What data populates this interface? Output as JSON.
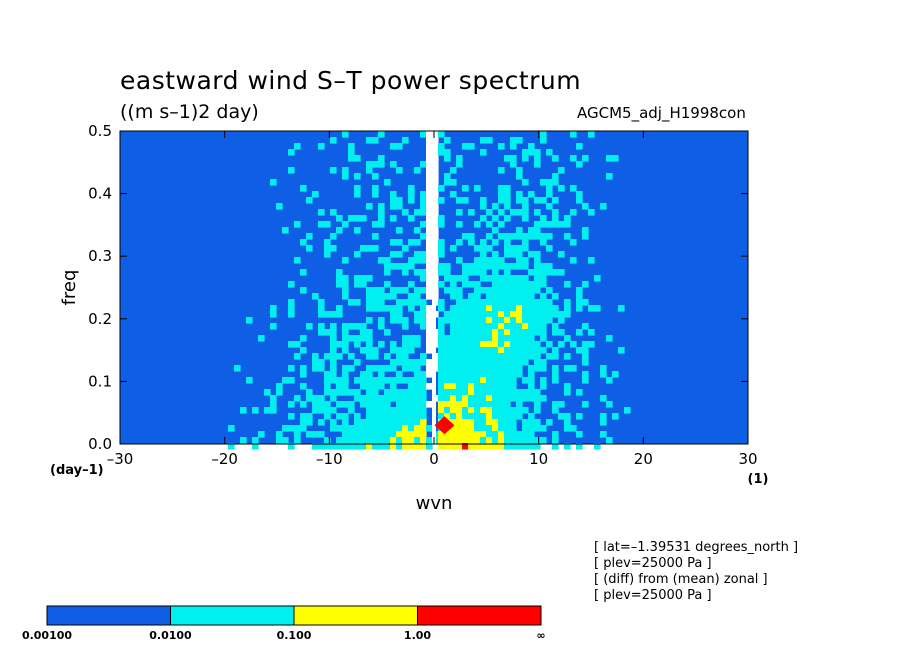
{
  "header": {
    "title": "eastward wind S–T power spectrum",
    "subtitle": "((m s–1)2 day)",
    "run_label": "AGCM5_adj_H1998con"
  },
  "info_lines": [
    "[ lat=–1.39531 degrees_north ]",
    "[ plev=25000 Pa ]",
    "[ (diff) from (mean) zonal ]",
    "[ plev=25000 Pa ]"
  ],
  "colors": {
    "level0": "#ffffff",
    "level1": "#0f5fe6",
    "level2": "#00f0f0",
    "level3": "#ffff00",
    "level4": "#ff0000"
  },
  "chart_data": {
    "type": "heatmap",
    "title": "eastward wind S–T power spectrum",
    "subtitle": "((m s–1)2 day)",
    "xlabel": "wvn",
    "xunit": "(1)",
    "ylabel": "freq",
    "yunit": "(day–1)",
    "xlim": [
      -30,
      30
    ],
    "ylim": [
      0,
      0.5
    ],
    "x_ticks": [
      -30,
      -20,
      -10,
      0,
      10,
      20,
      30
    ],
    "x_tick_labels": [
      "–30",
      "–20",
      "–10",
      "0",
      "10",
      "20",
      "30"
    ],
    "y_ticks": [
      0,
      0.1,
      0.2,
      0.3,
      0.4,
      0.5
    ],
    "y_tick_labels": [
      "0.0",
      "0.1",
      "0.2",
      "0.3",
      "0.4",
      "0.5"
    ],
    "colorbar": {
      "levels": [
        "0.00100",
        "0.0100",
        "0.100",
        "1.00",
        "∞"
      ],
      "colors": [
        "#0f5fe6",
        "#00f0f0",
        "#ffff00",
        "#ff0000"
      ]
    },
    "peak": {
      "x": 1,
      "y": 0.03
    }
  }
}
